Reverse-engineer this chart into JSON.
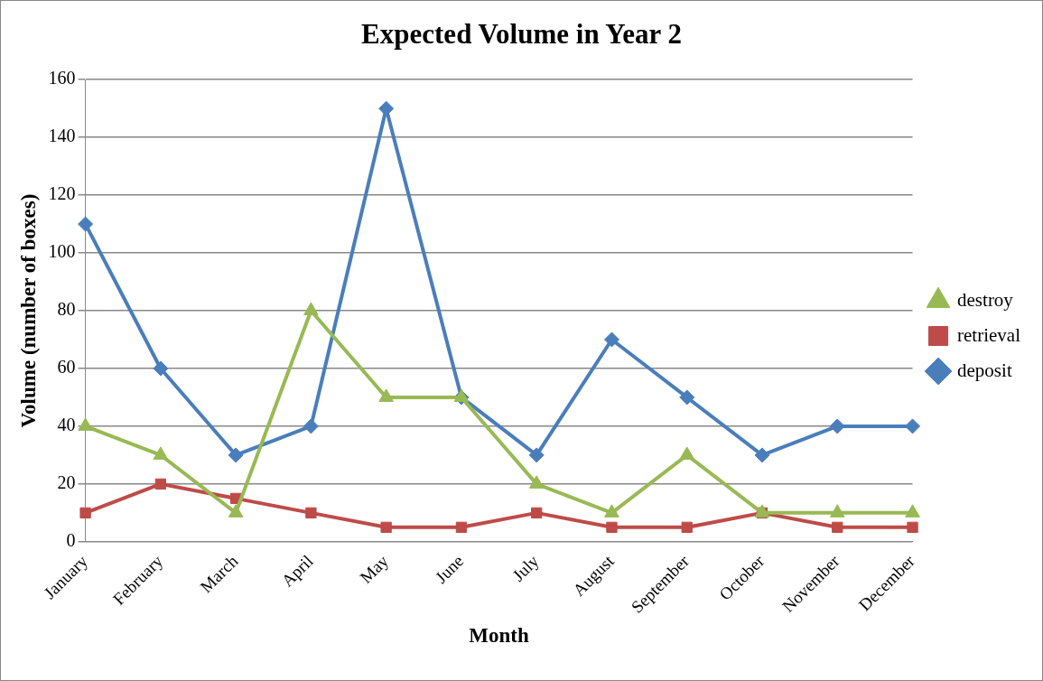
{
  "chart_data": {
    "type": "line",
    "title": "Expected Volume in Year 2",
    "xlabel": "Month",
    "ylabel": "Volume (number of boxes)",
    "categories": [
      "January",
      "February",
      "March",
      "April",
      "May",
      "June",
      "July",
      "August",
      "September",
      "October",
      "November",
      "December"
    ],
    "series": [
      {
        "name": "deposit",
        "color": "#4a7ebb",
        "marker": "diamond",
        "values": [
          110,
          60,
          30,
          40,
          150,
          50,
          30,
          70,
          50,
          30,
          40,
          40
        ]
      },
      {
        "name": "retrieval",
        "color": "#be4b48",
        "marker": "square",
        "values": [
          10,
          20,
          15,
          10,
          5,
          5,
          10,
          5,
          5,
          10,
          5,
          5
        ]
      },
      {
        "name": "destroy",
        "color": "#98b954",
        "marker": "triangle",
        "values": [
          40,
          30,
          10,
          80,
          50,
          50,
          20,
          10,
          30,
          10,
          10,
          10
        ]
      }
    ],
    "ylim": [
      0,
      160
    ],
    "yticks": [
      0,
      20,
      40,
      60,
      80,
      100,
      120,
      140,
      160
    ],
    "grid": "y",
    "legend": "right",
    "line_style": "solid"
  }
}
